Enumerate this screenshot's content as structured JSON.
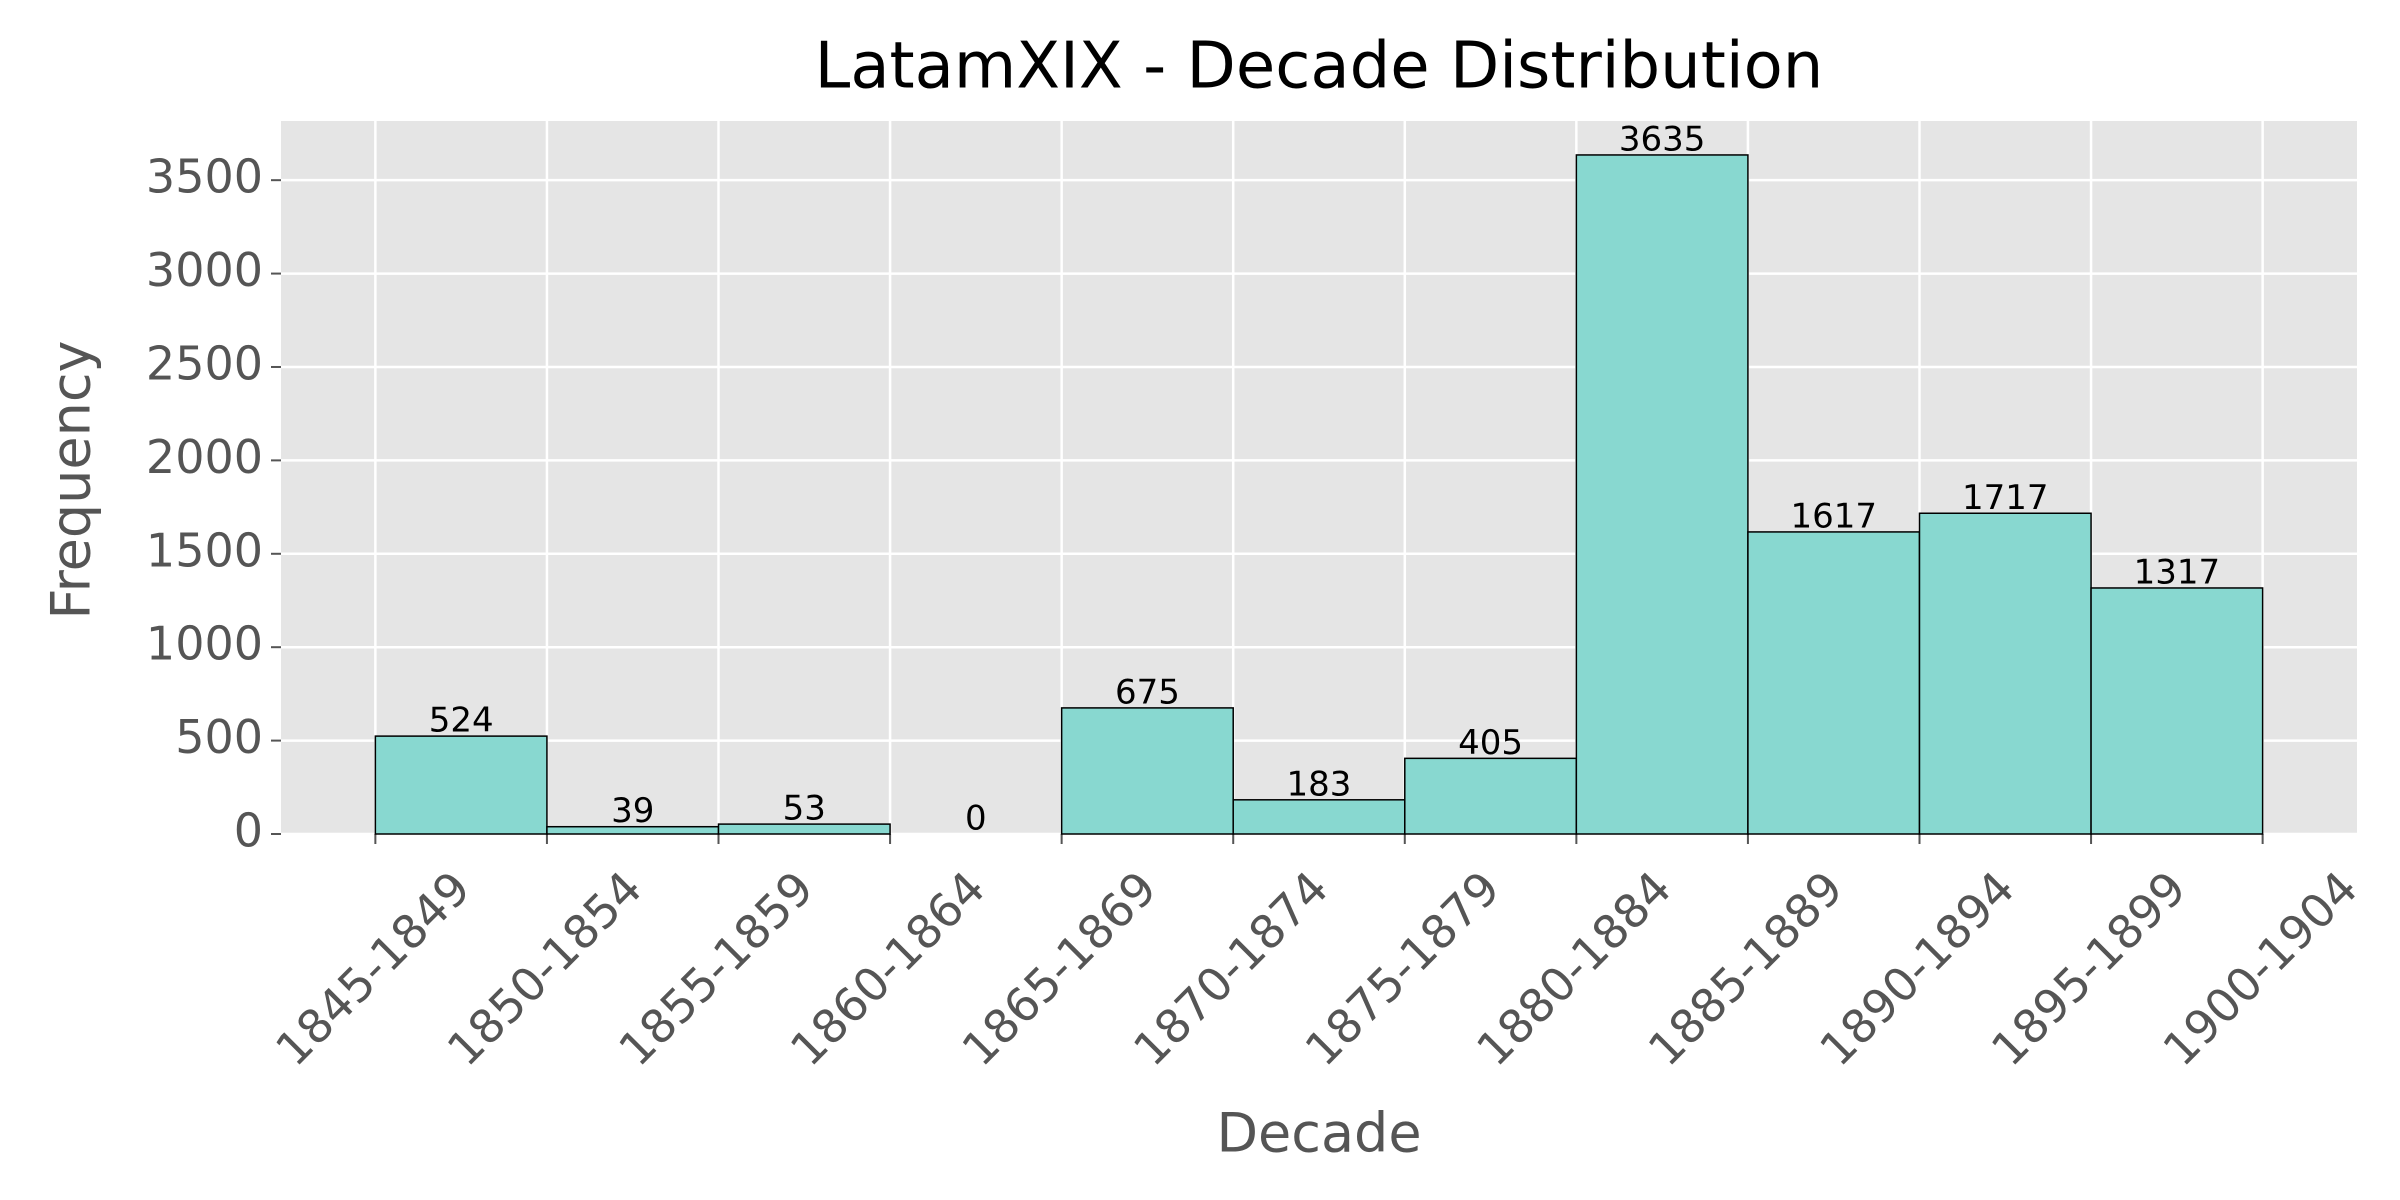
{
  "chart_data": {
    "type": "histogram",
    "title": "LatamXIX - Decade Distribution",
    "xlabel": "Decade",
    "ylabel": "Frequency",
    "bins": [
      1845,
      1850,
      1855,
      1860,
      1865,
      1870,
      1875,
      1880,
      1885,
      1890,
      1895,
      1900
    ],
    "counts": [
      524,
      39,
      53,
      0,
      675,
      183,
      405,
      3635,
      1617,
      1717,
      1317
    ],
    "color": "#88d8d0",
    "edgecolor": "#000000",
    "xlim": [
      1842.25,
      1902.75
    ],
    "ylim": [
      0,
      3816.75
    ],
    "xticks": [
      {
        "value": 1845,
        "label": "1845-1849"
      },
      {
        "value": 1850,
        "label": "1850-1854"
      },
      {
        "value": 1855,
        "label": "1855-1859"
      },
      {
        "value": 1860,
        "label": "1860-1864"
      },
      {
        "value": 1865,
        "label": "1865-1869"
      },
      {
        "value": 1870,
        "label": "1870-1874"
      },
      {
        "value": 1875,
        "label": "1875-1879"
      },
      {
        "value": 1880,
        "label": "1880-1884"
      },
      {
        "value": 1885,
        "label": "1885-1889"
      },
      {
        "value": 1890,
        "label": "1890-1894"
      },
      {
        "value": 1895,
        "label": "1895-1899"
      },
      {
        "value": 1900,
        "label": "1900-1904"
      }
    ],
    "yticks": [
      0,
      500,
      1000,
      1500,
      2000,
      2500,
      3000,
      3500
    ],
    "grid": true
  }
}
